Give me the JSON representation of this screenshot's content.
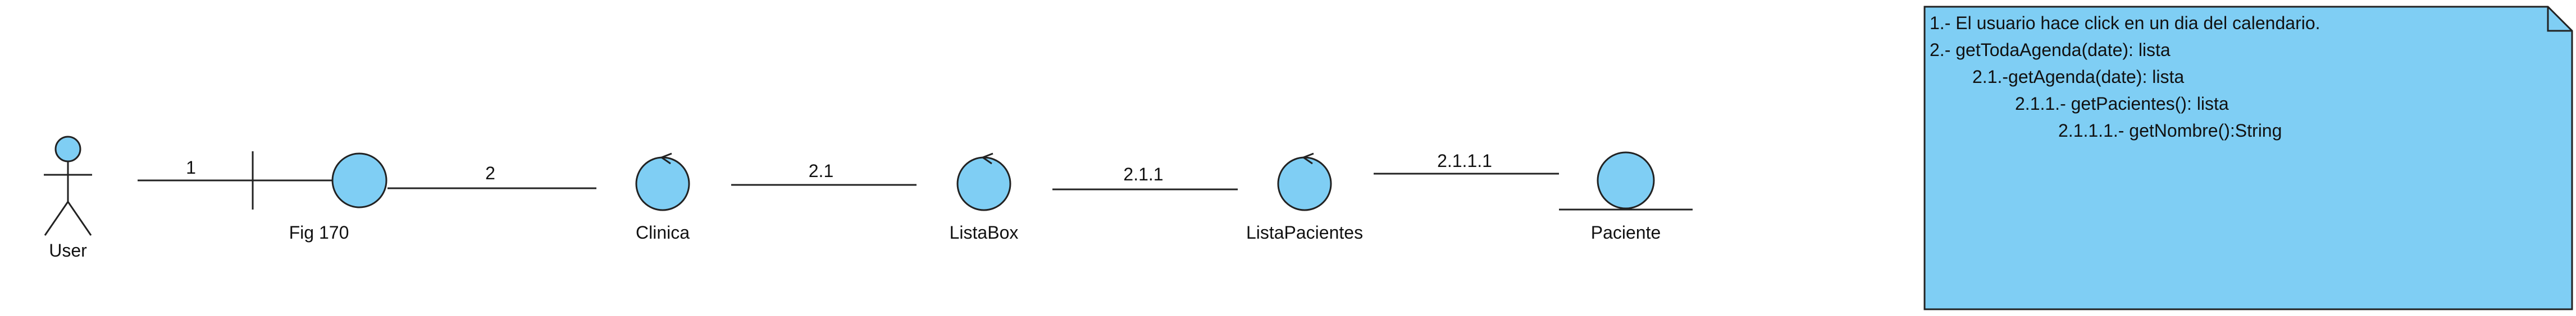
{
  "diagram": {
    "header_caption": "",
    "colors": {
      "fill": "#7fcef4",
      "stroke": "#222222",
      "note_fill": "#7fcef4"
    },
    "actor": {
      "label": "User",
      "icon": "actor-stick-figure-icon"
    },
    "objects": [
      {
        "id": "fig170",
        "label": "Fig 170",
        "kind": "boundary",
        "icon": "boundary-icon"
      },
      {
        "id": "clinica",
        "label": "Clinica",
        "kind": "control",
        "icon": "control-icon"
      },
      {
        "id": "listabox",
        "label": "ListaBox",
        "kind": "control",
        "icon": "control-icon"
      },
      {
        "id": "listapacientes",
        "label": "ListaPacientes",
        "kind": "control",
        "icon": "control-icon"
      },
      {
        "id": "paciente",
        "label": "Paciente",
        "kind": "entity",
        "icon": "entity-icon"
      }
    ],
    "links": [
      {
        "from": "user",
        "to": "fig170",
        "label": "1"
      },
      {
        "from": "fig170",
        "to": "clinica",
        "label": "2"
      },
      {
        "from": "clinica",
        "to": "listabox",
        "label": "2.1"
      },
      {
        "from": "listabox",
        "to": "listapacientes",
        "label": "2.1.1"
      },
      {
        "from": "listapacientes",
        "to": "paciente",
        "label": "2.1.1.1"
      }
    ],
    "note": {
      "lines": [
        "1.- El usuario hace click en un dia del calendario.",
        "2.- getTodaAgenda(date): lista",
        "2.1.-getAgenda(date): lista",
        "2.1.1.- getPacientes(): lista",
        "2.1.1.1.- getNombre():String"
      ]
    }
  }
}
